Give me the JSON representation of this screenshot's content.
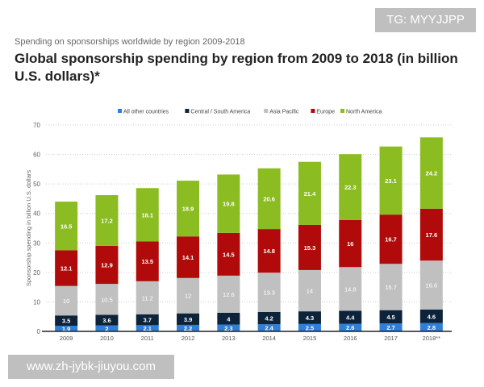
{
  "watermarks": {
    "top": "TG: MYYJJPP",
    "bottom": "www.zh-jybk-jiuyou.com"
  },
  "chart_data": {
    "type": "bar",
    "stacked": true,
    "subtitle": "Spending on sponsorships worldwide by region 2009-2018",
    "title": "Global sponsorship spending by region from 2009 to 2018 (in billion U.S. dollars)*",
    "ylabel": "Sponsorship spending in billion U.S. dollars",
    "xlabel": "",
    "ylim": [
      0,
      70
    ],
    "yticks": [
      0,
      10,
      20,
      30,
      40,
      50,
      60,
      70
    ],
    "grid": true,
    "legend": "top",
    "categories": [
      "2009",
      "2010",
      "2011",
      "2012",
      "2013",
      "2014",
      "2015",
      "2016",
      "2017",
      "2018**"
    ],
    "series": [
      {
        "name": "All other countries",
        "color": "#2f7ed8",
        "label_color": "#ffffff",
        "values": [
          1.9,
          2,
          2.1,
          2.2,
          2.3,
          2.4,
          2.5,
          2.6,
          2.7,
          2.8
        ]
      },
      {
        "name": "Central / South America",
        "color": "#0d233a",
        "label_color": "#ffffff",
        "values": [
          3.5,
          3.6,
          3.7,
          3.9,
          4,
          4.2,
          4.3,
          4.4,
          4.5,
          4.6
        ]
      },
      {
        "name": "Asia Pacific",
        "color": "#c0c0c0",
        "label_color": "#ffffff",
        "values": [
          10,
          10.5,
          11.2,
          12,
          12.6,
          13.3,
          14,
          14.8,
          15.7,
          16.6
        ]
      },
      {
        "name": "Europe",
        "color": "#b00a0a",
        "label_color": "#ffffff",
        "values": [
          12.1,
          12.9,
          13.5,
          14.1,
          14.5,
          14.8,
          15.3,
          16,
          16.7,
          17.6
        ]
      },
      {
        "name": "North America",
        "color": "#8bbc21",
        "label_color": "#ffffff",
        "values": [
          16.5,
          17.2,
          18.1,
          18.9,
          19.8,
          20.6,
          21.4,
          22.3,
          23.1,
          24.2
        ]
      }
    ]
  }
}
